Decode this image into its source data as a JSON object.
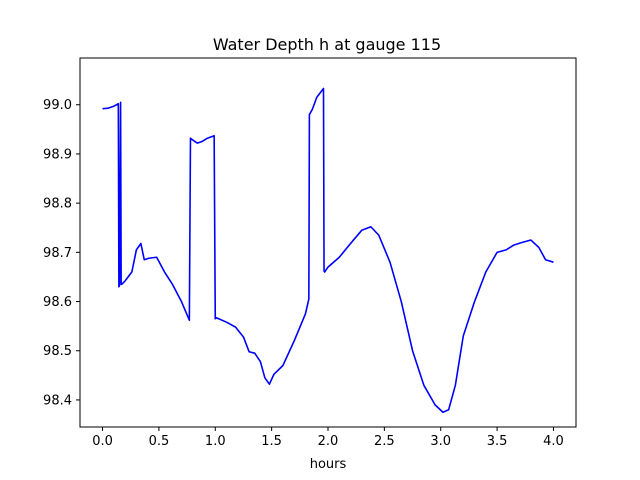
{
  "chart_data": {
    "type": "line",
    "title": "Water Depth h at gauge 115",
    "xlabel": "hours",
    "ylabel": "",
    "xlim": [
      -0.2,
      4.2
    ],
    "ylim": [
      98.345,
      99.095
    ],
    "xticks": [
      0.0,
      0.5,
      1.0,
      1.5,
      2.0,
      2.5,
      3.0,
      3.5,
      4.0
    ],
    "xtick_labels": [
      "0.0",
      "0.5",
      "1.0",
      "1.5",
      "2.0",
      "2.5",
      "3.0",
      "3.5",
      "4.0"
    ],
    "yticks": [
      98.4,
      98.5,
      98.6,
      98.7,
      98.8,
      98.9,
      99.0
    ],
    "ytick_labels": [
      "98.4",
      "98.5",
      "98.6",
      "98.7",
      "98.8",
      "98.9",
      "99.0"
    ],
    "grid": false,
    "legend": "none",
    "series": [
      {
        "color": "#0000ff",
        "x": [
          0.0,
          0.05,
          0.1,
          0.14,
          0.145,
          0.15,
          0.16,
          0.165,
          0.17,
          0.2,
          0.26,
          0.3,
          0.34,
          0.37,
          0.41,
          0.48,
          0.55,
          0.62,
          0.7,
          0.77,
          0.78,
          0.79,
          0.84,
          0.88,
          0.93,
          0.99,
          1.0,
          1.01,
          1.1,
          1.18,
          1.25,
          1.3,
          1.35,
          1.4,
          1.44,
          1.48,
          1.52,
          1.6,
          1.7,
          1.8,
          1.83,
          1.835,
          1.86,
          1.9,
          1.96,
          1.965,
          1.97,
          2.0,
          2.1,
          2.2,
          2.3,
          2.38,
          2.45,
          2.55,
          2.65,
          2.75,
          2.85,
          2.95,
          3.02,
          3.07,
          3.13,
          3.2,
          3.3,
          3.4,
          3.5,
          3.58,
          3.65,
          3.72,
          3.8,
          3.87,
          3.93,
          4.0
        ],
        "y": [
          98.992,
          98.993,
          98.997,
          99.002,
          98.63,
          98.632,
          99.005,
          98.635,
          98.635,
          98.642,
          98.66,
          98.705,
          98.718,
          98.685,
          98.688,
          98.69,
          98.66,
          98.635,
          98.6,
          98.562,
          98.932,
          98.93,
          98.922,
          98.925,
          98.932,
          98.937,
          98.565,
          98.567,
          98.558,
          98.548,
          98.528,
          98.498,
          98.495,
          98.478,
          98.445,
          98.432,
          98.452,
          98.47,
          98.52,
          98.575,
          98.605,
          98.98,
          98.99,
          99.015,
          99.033,
          98.662,
          98.66,
          98.67,
          98.69,
          98.718,
          98.745,
          98.752,
          98.735,
          98.68,
          98.6,
          98.5,
          98.43,
          98.39,
          98.375,
          98.38,
          98.43,
          98.53,
          98.6,
          98.66,
          98.7,
          98.705,
          98.715,
          98.72,
          98.725,
          98.71,
          98.685,
          98.68
        ]
      }
    ]
  }
}
